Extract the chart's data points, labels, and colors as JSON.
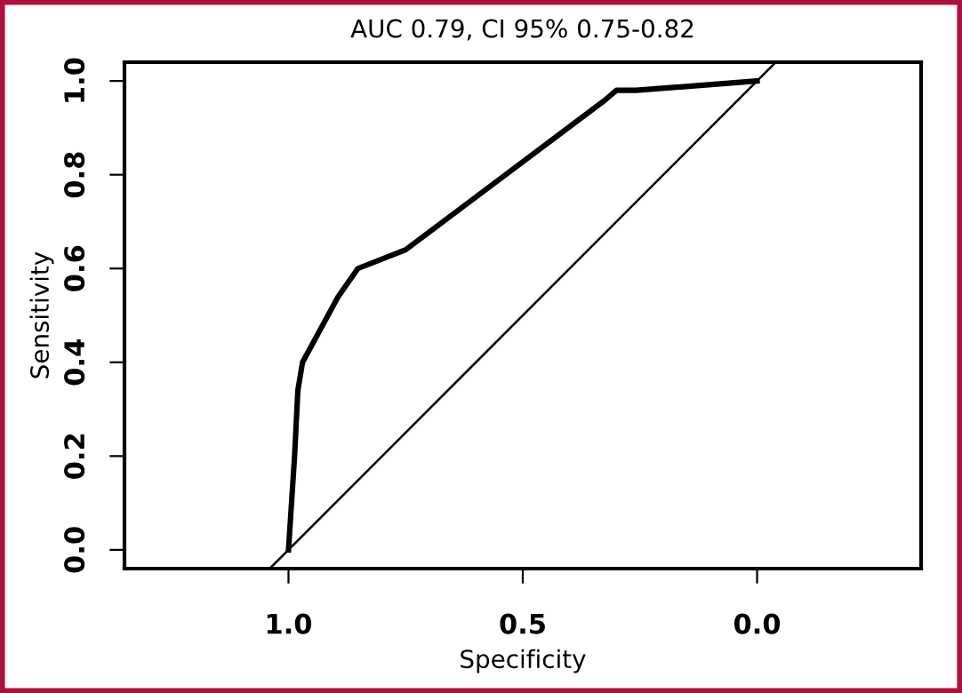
{
  "chart_data": {
    "type": "line",
    "title": "AUC 0.79, CI 95% 0.75-0.82",
    "xlabel": "Specificity",
    "ylabel": "Sensitivity",
    "series": [
      {
        "color": "#000000",
        "x": [
          1.0,
          0.987,
          0.98,
          0.97,
          0.894,
          0.852,
          0.75,
          0.326,
          0.3,
          0.258,
          0.0
        ],
        "values": [
          0.0,
          0.2,
          0.34,
          0.4,
          0.54,
          0.6,
          0.64,
          0.958,
          0.98,
          0.98,
          1.0
        ]
      },
      {
        "color": "#000000",
        "x": [
          1.04,
          -0.04
        ],
        "values": [
          -0.04,
          1.04
        ]
      }
    ],
    "xlim": [
      1.35,
      -0.35
    ],
    "ylim": [
      -0.04,
      1.04
    ],
    "xticks": [
      {
        "value": 1,
        "label": "1.0"
      },
      0.5,
      {
        "value": 0,
        "label": "0.0"
      }
    ],
    "yticks": [
      {
        "value": 0,
        "label": "0.0"
      },
      0.2,
      0.4,
      0.6,
      0.8,
      {
        "value": 1,
        "label": "1.0"
      }
    ],
    "grid": false,
    "legend": false,
    "marker": "none",
    "line_style": "solid"
  }
}
